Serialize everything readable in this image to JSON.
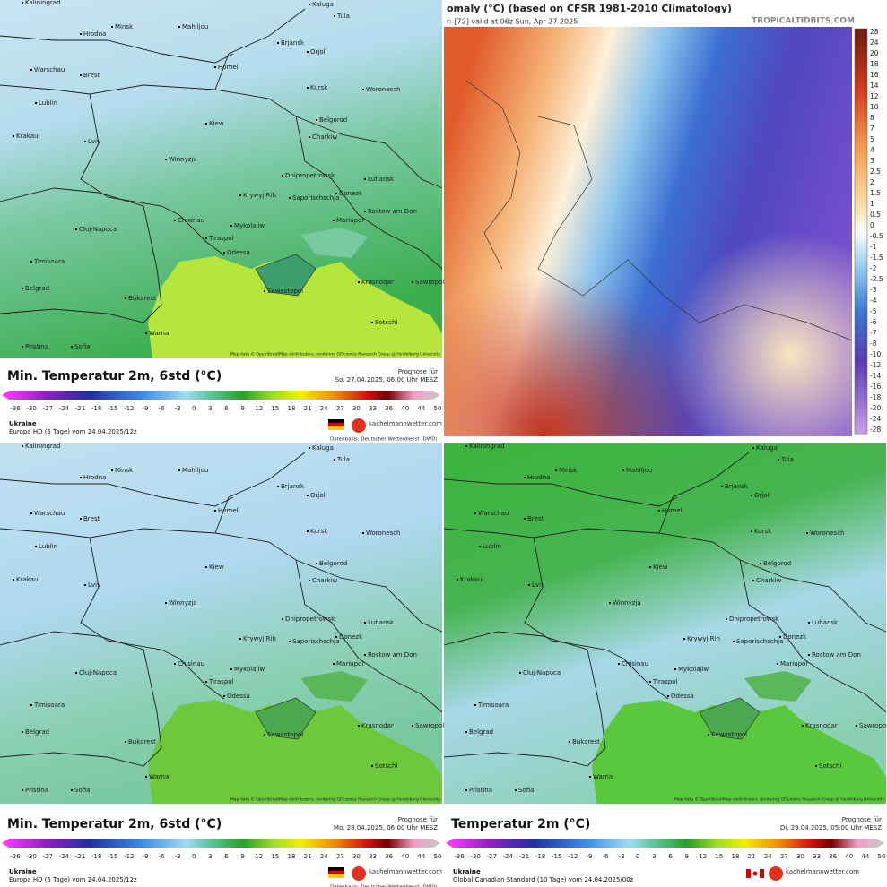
{
  "panels": [
    {
      "title": "Min. Temperatur 2m, 6std (°C)",
      "forecast_label": "Prognose für",
      "forecast_time": "So. 27.04.2025, 06:00 Uhr MESZ",
      "region": "Ukraine",
      "model": "Europa HD (5 Tage) vom 24.04.2025/12z",
      "source": "Datenbasis: Deutscher Wetterdienst (DWD)",
      "brand": "kachelmannwetter.com",
      "attribution": "Map data © OpenStreetMap contributors, rendering GIScience Research Group @ Heidelberg University"
    },
    {
      "title": "Min. Temperatur 2m, 6std (°C)",
      "forecast_label": "Prognose für",
      "forecast_time": "Mo. 28.04.2025, 06:00 Uhr MESZ",
      "region": "Ukraine",
      "model": "Europa HD (5 Tage) vom 24.04.2025/12z",
      "source": "Datenbasis: Deutscher Wetterdienst (DWD)",
      "brand": "kachelmannwetter.com",
      "attribution": "Map data © OpenStreetMap contributors, rendering GIScience Research Group @ Heidelberg University"
    },
    {
      "title": "Temperatur 2m (°C)",
      "forecast_label": "Prognose für",
      "forecast_time": "Di. 29.04.2025, 05:00 Uhr MESZ",
      "region": "Ukraine",
      "model": "Global Canadian Standard (10 Tage) vom 24.04.2025/00z",
      "brand": "kachelmannwetter.com",
      "attribution": "Map data © OpenStreetMap contributors, rendering GIScience Research Group @ Heidelberg University"
    }
  ],
  "colorbar_ticks": [
    "-36",
    "-30",
    "-27",
    "-24",
    "-21",
    "-18",
    "-15",
    "-12",
    "-9",
    "-6",
    "-3",
    "0",
    "3",
    "6",
    "9",
    "12",
    "15",
    "18",
    "21",
    "24",
    "27",
    "30",
    "33",
    "36",
    "40",
    "44",
    "50"
  ],
  "cities": [
    "Kaliningrad",
    "Minsk",
    "Mahiljou",
    "Kaluga",
    "Tula",
    "Hrodna",
    "Brjansk",
    "Orjol",
    "Homel",
    "Warschau",
    "Brest",
    "Kursk",
    "Woronesch",
    "Lublin",
    "Kiew",
    "Belgorod",
    "Charkiw",
    "Lviv",
    "Krakau",
    "Winnyzja",
    "Dnipropetrowsk",
    "Luhansk",
    "Krywyj Rih",
    "Saporischschja",
    "Donezk",
    "Chisinau",
    "Mykolajiw",
    "Rostow am Don",
    "Cluj-Napoca",
    "Tiraspol",
    "Odessa",
    "Mariupol",
    "Timisoara",
    "Krasnodar",
    "Sawropol",
    "Belgrad",
    "Bukarest",
    "Sewastopol",
    "Warna",
    "Sotschi",
    "Pristina",
    "Sofia"
  ],
  "anomaly": {
    "title": "omaly (°C) (based on CFSR 1981-2010 Climatology)",
    "subtitle": "r: [72]  valid at 06z Sun, Apr 27 2025",
    "site": "TROPICALTIDBITS.COM",
    "ticks": [
      "28",
      "24",
      "20",
      "18",
      "16",
      "14",
      "12",
      "10",
      "8",
      "7",
      "5",
      "4",
      "3",
      "2.5",
      "2",
      "1.5",
      "1",
      "0.5",
      "0",
      "-0.5",
      "-1",
      "-1.5",
      "-2",
      "-2.5",
      "-3",
      "-4",
      "-5",
      "-6",
      "-7",
      "-8",
      "-10",
      "-12",
      "-14",
      "-16",
      "-18",
      "-20",
      "-24",
      "-28"
    ]
  }
}
